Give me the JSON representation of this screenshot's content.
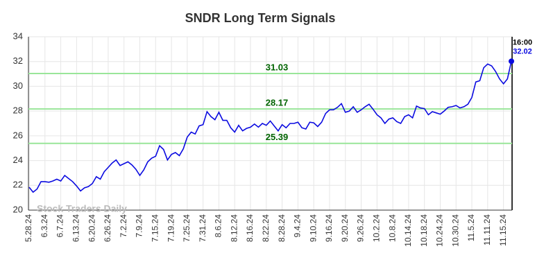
{
  "chart_data": {
    "type": "line",
    "title": "SNDR Long Term Signals",
    "watermark": "Stock Traders Daily",
    "categories": [
      "5.28.24",
      null,
      null,
      null,
      "6.3.24",
      null,
      null,
      null,
      "6.7.24",
      null,
      null,
      null,
      "6.13.24",
      null,
      null,
      null,
      "6.20.24",
      null,
      null,
      null,
      "6.26.24",
      null,
      null,
      null,
      "7.2.24",
      null,
      null,
      null,
      "7.9.24",
      null,
      null,
      null,
      "7.15.24",
      null,
      null,
      null,
      "7.19.24",
      null,
      null,
      null,
      "7.25.24",
      null,
      null,
      null,
      "7.31.24",
      null,
      null,
      null,
      "8.6.24",
      null,
      null,
      null,
      "8.12.24",
      null,
      null,
      null,
      "8.16.24",
      null,
      null,
      null,
      "8.22.24",
      null,
      null,
      null,
      "8.28.24",
      null,
      null,
      null,
      "9.4.24",
      null,
      null,
      null,
      "9.10.24",
      null,
      null,
      null,
      "9.16.24",
      null,
      null,
      null,
      "9.20.24",
      null,
      null,
      null,
      "9.26.24",
      null,
      null,
      null,
      "10.2.24",
      null,
      null,
      null,
      "10.8.24",
      null,
      null,
      null,
      "10.14.24",
      null,
      null,
      null,
      "10.18.24",
      null,
      null,
      null,
      "10.24.24",
      null,
      null,
      null,
      "10.30.24",
      null,
      null,
      null,
      "11.5.24",
      null,
      null,
      null,
      "11.11.24",
      null,
      null,
      null,
      "11.15.24",
      null,
      null
    ],
    "series": [
      {
        "color": "#0a0ae0",
        "values": [
          21.85,
          21.45,
          21.7,
          22.3,
          22.3,
          22.25,
          22.35,
          22.5,
          22.35,
          22.8,
          22.55,
          22.3,
          21.95,
          21.55,
          21.8,
          21.9,
          22.15,
          22.7,
          22.5,
          23.1,
          23.45,
          23.8,
          24.05,
          23.6,
          23.75,
          23.9,
          23.65,
          23.3,
          22.8,
          23.25,
          23.9,
          24.2,
          24.35,
          25.2,
          24.9,
          24.05,
          24.5,
          24.65,
          24.4,
          24.95,
          25.9,
          26.3,
          26.15,
          26.8,
          26.9,
          27.95,
          27.55,
          27.3,
          27.9,
          27.25,
          27.25,
          26.65,
          26.3,
          26.85,
          26.4,
          26.6,
          26.7,
          26.95,
          26.7,
          27.0,
          26.85,
          27.2,
          26.8,
          26.4,
          26.9,
          26.65,
          27.0,
          27.0,
          27.1,
          26.65,
          26.55,
          27.1,
          27.05,
          26.75,
          27.1,
          27.8,
          28.1,
          28.1,
          28.3,
          28.6,
          27.9,
          28.0,
          28.35,
          27.9,
          28.1,
          28.35,
          28.55,
          28.15,
          27.7,
          27.45,
          27.0,
          27.35,
          27.45,
          27.15,
          27.0,
          27.55,
          27.7,
          27.45,
          28.4,
          28.25,
          28.2,
          27.7,
          27.95,
          27.85,
          27.75,
          28.0,
          28.3,
          28.35,
          28.45,
          28.25,
          28.35,
          28.55,
          29.1,
          30.35,
          30.45,
          31.5,
          31.8,
          31.65,
          31.2,
          30.6,
          30.2,
          30.6,
          32.02
        ]
      }
    ],
    "last_point_time": "16:00",
    "hlines": [
      31.03,
      28.17,
      25.39
    ],
    "hline_color": "#99e699",
    "hline_label_color": "#006400",
    "ylim": [
      20,
      34
    ],
    "yticks": [
      20,
      22,
      24,
      26,
      28,
      30,
      32,
      34
    ],
    "grid": true
  }
}
